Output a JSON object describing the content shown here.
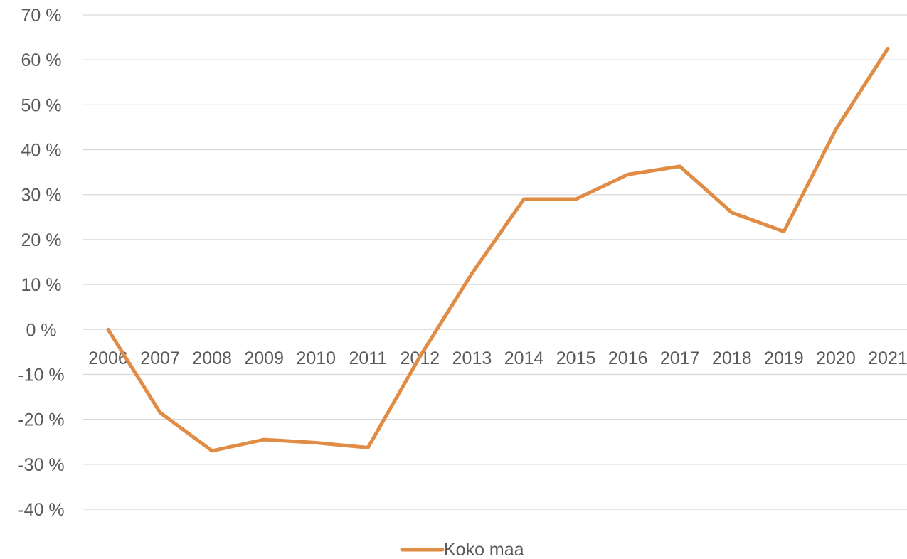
{
  "chart_data": {
    "type": "line",
    "x": [
      "2006",
      "2007",
      "2008",
      "2009",
      "2010",
      "2011",
      "2012",
      "2013",
      "2014",
      "2015",
      "2016",
      "2017",
      "2018",
      "2019",
      "2020",
      "2021"
    ],
    "series": [
      {
        "name": "Koko maa",
        "values": [
          0,
          -18.5,
          -27,
          -24.5,
          -25.2,
          -26.3,
          -6,
          12.5,
          29,
          29,
          34.5,
          36.3,
          26,
          21.8,
          44.5,
          62.5
        ],
        "color": "#E08C45"
      }
    ],
    "yticks": [
      "70 %",
      "60 %",
      "50 %",
      "40 %",
      "30 %",
      "20 %",
      "10 %",
      "0 %",
      "-10 %",
      "-20 %",
      "-30 %",
      "-40 %"
    ],
    "ylim": [
      -40,
      70
    ],
    "grid": true,
    "legend_position": "bottom",
    "gridline_color": "#D9D9D9",
    "text_color": "#595959"
  }
}
